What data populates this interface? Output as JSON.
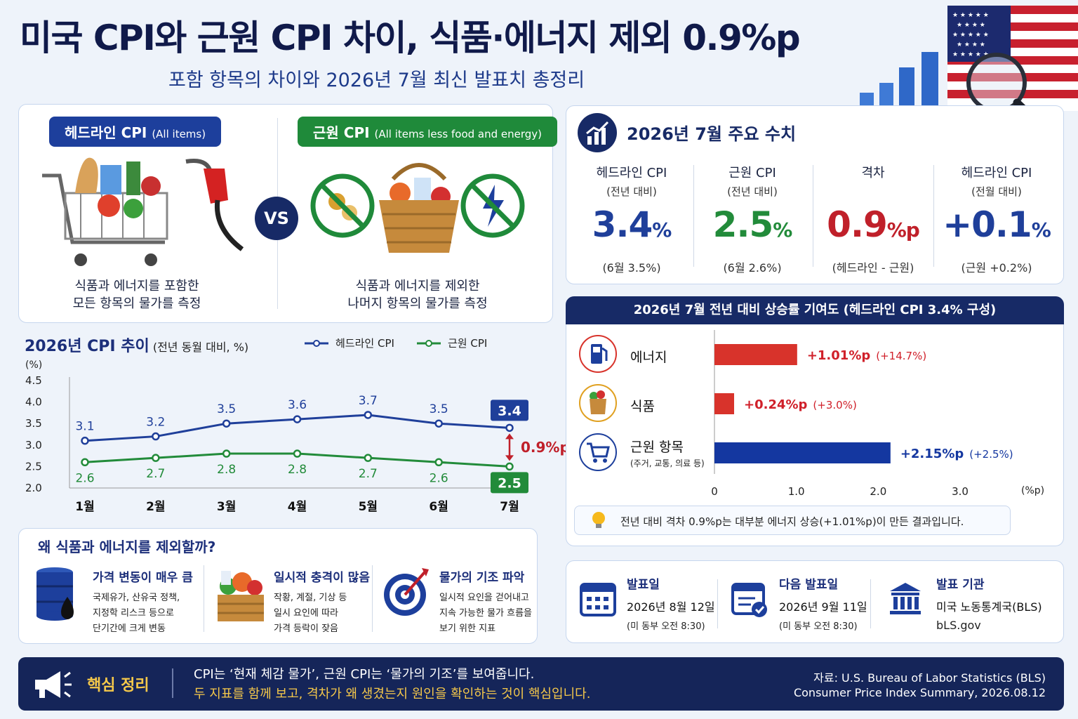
{
  "header": {
    "title": "미국 CPI와 근원 CPI 차이, 식품·에너지 제외 0.9%p",
    "subtitle": "포함 항목의 차이와 2026년 7월 최신 발표치 총정리"
  },
  "compare": {
    "headline_label": "헤드라인 CPI",
    "headline_en": "(All items)",
    "core_label": "근원 CPI",
    "core_en": "(All items less food and energy)",
    "vs": "VS",
    "headline_desc_1": "식품과 에너지를 포함한",
    "headline_desc_2": "모든 항목의 물가를 측정",
    "core_desc_1": "식품과 에너지를 제외한",
    "core_desc_2": "나머지 항목의 물가를 측정"
  },
  "chart_title": "2026년 CPI 추이",
  "chart_title_sub": "(전년 동월 대비, %)",
  "chart_data": {
    "type": "line",
    "title": "2026년 CPI 추이",
    "ylabel": "(%)",
    "categories": [
      "1월",
      "2월",
      "3월",
      "4월",
      "5월",
      "6월",
      "7월"
    ],
    "yticks": [
      "4.5",
      "4.0",
      "3.5",
      "3.0",
      "2.5",
      "2.0"
    ],
    "ylim": [
      2.0,
      4.5
    ],
    "series": [
      {
        "name": "헤드라인 CPI",
        "color": "#1f3f9a",
        "values": [
          3.1,
          3.2,
          3.5,
          3.6,
          3.7,
          3.5,
          3.4
        ],
        "labels": [
          "3.1",
          "3.2",
          "3.5",
          "3.6",
          "3.7",
          "3.5",
          "3.4"
        ]
      },
      {
        "name": "근원 CPI",
        "color": "#228b3a",
        "values": [
          2.6,
          2.7,
          2.8,
          2.8,
          2.7,
          2.6,
          2.5
        ],
        "labels": [
          "2.6",
          "2.7",
          "2.8",
          "2.8",
          "2.7",
          "2.6",
          "2.5"
        ]
      }
    ],
    "gap_annotation": "0.9%p",
    "legend_position": "top"
  },
  "key_figures": {
    "title": "2026년 7월 주요 수치",
    "items": [
      {
        "label": "헤드라인 CPI",
        "sub": "(전년 대비)",
        "value": "3.4",
        "unit": "%",
        "note": "(6월 3.5%)",
        "color": "#1f3f9a"
      },
      {
        "label": "근원 CPI",
        "sub": "(전년 대비)",
        "value": "2.5",
        "unit": "%",
        "note": "(6월 2.6%)",
        "color": "#228b3a"
      },
      {
        "label": "격차",
        "sub": "",
        "value": "0.9",
        "unit": "%p",
        "note": "(헤드라인 - 근원)",
        "color": "#c0202a"
      },
      {
        "label": "헤드라인 CPI",
        "sub": "(전월 대비)",
        "value": "+0.1",
        "unit": "%",
        "note": "(근원 +0.2%)",
        "color": "#1f3f9a"
      }
    ]
  },
  "contrib": {
    "title": "2026년 7월 전년 대비 상승률 기여도 (헤드라인 CPI 3.4% 구성)",
    "rows": [
      {
        "label": "에너지",
        "sub": "",
        "value": 1.01,
        "text": "+1.01%p",
        "pct": "(+14.7%)",
        "color": "#d8332b",
        "text_color": "#d0202a"
      },
      {
        "label": "식품",
        "sub": "",
        "value": 0.24,
        "text": "+0.24%p",
        "pct": "(+3.0%)",
        "color": "#d8332b",
        "text_color": "#d0202a"
      },
      {
        "label": "근원 항목",
        "sub": "(주거, 교통, 의료 등)",
        "value": 2.15,
        "text": "+2.15%p",
        "pct": "(+2.5%)",
        "color": "#1437a0",
        "text_color": "#1437a0"
      }
    ],
    "axis_ticks": [
      "0",
      "1.0",
      "2.0",
      "3.0"
    ],
    "axis_unit": "(%p)",
    "xlim": [
      0,
      3.0
    ],
    "note": "전년 대비 격차 0.9%p는 대부분 에너지 상승(+1.01%p)이 만든 결과입니다."
  },
  "why": {
    "title": "왜 식품과 에너지를 제외할까?",
    "items": [
      {
        "title": "가격 변동이 매우 큼",
        "lines": [
          "국제유가, 산유국 정책,",
          "지정학 리스크 등으로",
          "단기간에 크게 변동"
        ]
      },
      {
        "title": "일시적 충격이 많음",
        "lines": [
          "작황, 계절, 기상 등",
          "일시 요인에 따라",
          "가격 등락이 잦음"
        ]
      },
      {
        "title": "물가의 기조 파악",
        "lines": [
          "일시적 요인을 걷어내고",
          "지속 가능한 물가 흐름을",
          "보기 위한 지표"
        ]
      }
    ]
  },
  "release": {
    "items": [
      {
        "label": "발표일",
        "value": "2026년 8월 12일",
        "note": "(미 동부 오전 8:30)"
      },
      {
        "label": "다음 발표일",
        "value": "2026년 9월 11일",
        "note": "(미 동부 오전 8:30)"
      },
      {
        "label": "발표 기관",
        "value": "미국 노동통계국(BLS)",
        "note": "bLS.gov"
      }
    ]
  },
  "footer": {
    "label": "핵심 정리",
    "line1": "CPI는 ‘현재 체감 물가’, 근원 CPI는 ‘물가의 기조’를 보여줍니다.",
    "line2": "두 지표를 함께 보고, 격차가 왜 생겼는지 원인을 확인하는 것이 핵심입니다.",
    "source1": "자료:  U.S. Bureau of Labor Statistics (BLS)",
    "source2": "Consumer Price Index Summary, 2026.08.12"
  }
}
